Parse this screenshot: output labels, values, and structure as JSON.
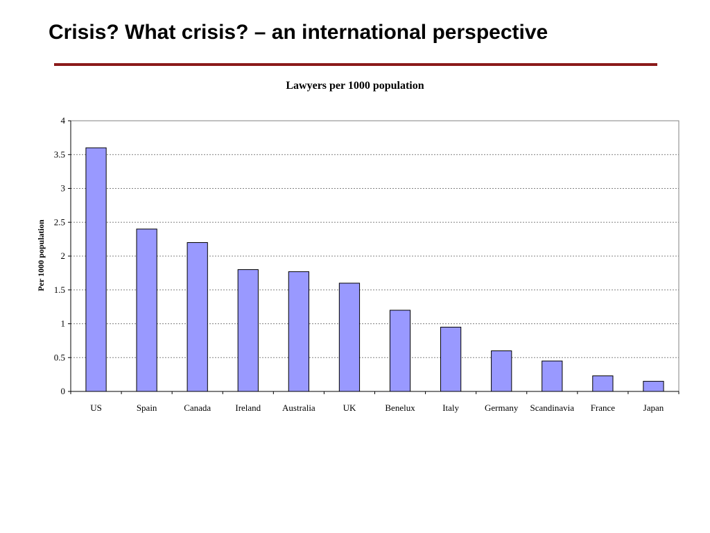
{
  "slide": {
    "title": "Crisis? What crisis? – an international perspective",
    "rule_color": "#8b1a1a"
  },
  "chart_data": {
    "type": "bar",
    "title": "Lawyers per 1000 population",
    "xlabel": "",
    "ylabel": "Per 1000 population",
    "ylim": [
      0,
      4
    ],
    "yticks": [
      "0",
      "0.5",
      "1",
      "1.5",
      "2",
      "2.5",
      "3",
      "3.5",
      "4"
    ],
    "categories": [
      "US",
      "Spain",
      "Canada",
      "Ireland",
      "Australia",
      "UK",
      "Benelux",
      "Italy",
      "Germany",
      "Scandinavia",
      "France",
      "Japan"
    ],
    "values": [
      3.6,
      2.4,
      2.2,
      1.8,
      1.77,
      1.6,
      1.2,
      0.95,
      0.6,
      0.45,
      0.23,
      0.15
    ],
    "bar_color": "#9999ff",
    "grid": true,
    "legend": "none"
  }
}
